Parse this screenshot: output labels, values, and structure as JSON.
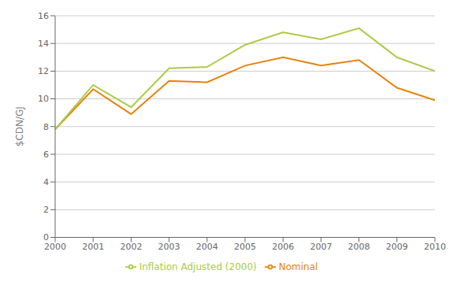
{
  "chart_data": {
    "type": "line",
    "y_label": "$CDN/GJ",
    "x": [
      2000,
      2001,
      2002,
      2003,
      2004,
      2005,
      2006,
      2007,
      2008,
      2009,
      2010
    ],
    "series": [
      {
        "name": "Nominal",
        "color": "#E8820A",
        "values": [
          7.8,
          10.7,
          8.9,
          11.3,
          11.2,
          12.4,
          13.0,
          12.4,
          12.8,
          10.8,
          9.9
        ]
      },
      {
        "name": "Inflation Adjusted (2000)",
        "color": "#AACC44",
        "values": [
          7.8,
          11.0,
          9.4,
          12.2,
          12.3,
          13.9,
          14.8,
          14.3,
          15.1,
          13.0,
          12.0
        ]
      }
    ],
    "xlim": [
      2000,
      2010
    ],
    "xticks": [
      2000,
      2001,
      2002,
      2003,
      2004,
      2005,
      2006,
      2007,
      2008,
      2009,
      2010
    ],
    "ylim": [
      0,
      16
    ],
    "yticks": [
      0,
      2,
      4,
      6,
      8,
      10,
      12,
      14,
      16
    ],
    "grid": true,
    "legend": "bottom"
  }
}
